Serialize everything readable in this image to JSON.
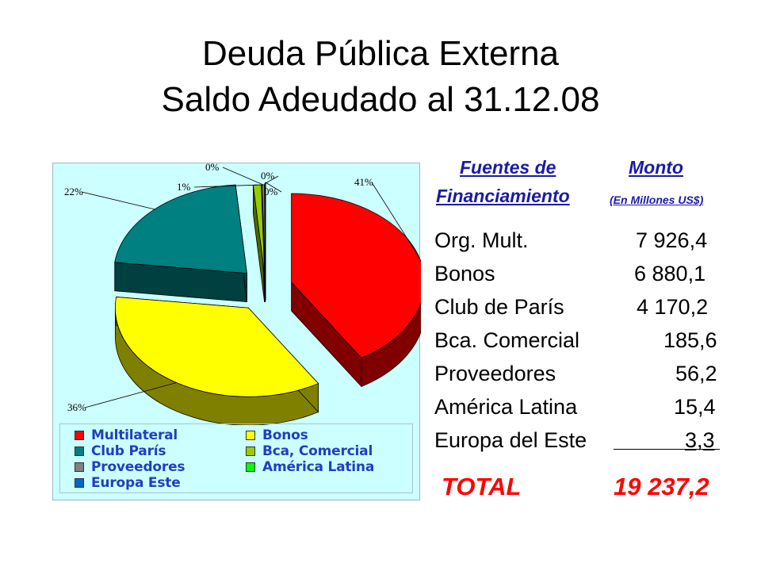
{
  "title": {
    "line1": "Deuda Pública Externa",
    "line2": "Saldo Adeudado al 31.12.08"
  },
  "chart_data": {
    "type": "pie",
    "style": "3d-exploded",
    "background_color": "#ccffff",
    "legend_placement": "bottom",
    "slices": [
      {
        "name": "Multilateral",
        "value": 7926.4,
        "label": "41%",
        "color": "#ff0000",
        "side_color": "#800000"
      },
      {
        "name": "Bonos",
        "value": 6880.1,
        "label": "36%",
        "color": "#ffff00",
        "side_color": "#808000"
      },
      {
        "name": "Club París",
        "value": 4170.2,
        "label": "22%",
        "color": "#008080",
        "side_color": "#004040"
      },
      {
        "name": "Bca, Comercial",
        "value": 185.6,
        "label": "1%",
        "color": "#99cc00",
        "side_color": "#4c6600"
      },
      {
        "name": "Proveedores",
        "value": 56.2,
        "label": "0%",
        "color": "#808080",
        "side_color": "#404040"
      },
      {
        "name": "América Latina",
        "value": 15.4,
        "label": "0%",
        "color": "#00ff00",
        "side_color": "#008000"
      },
      {
        "name": "Europa Este",
        "value": 3.3,
        "label": "0%",
        "color": "#0066cc",
        "side_color": "#003366"
      }
    ],
    "legend": [
      {
        "label": "Multilateral",
        "color": "#ff0000"
      },
      {
        "label": "Bonos",
        "color": "#ffff00"
      },
      {
        "label": "Club París",
        "color": "#008080"
      },
      {
        "label": "Bca, Comercial",
        "color": "#99cc00"
      },
      {
        "label": "Proveedores",
        "color": "#808080"
      },
      {
        "label": "América Latina",
        "color": "#00ff00"
      },
      {
        "label": "Europa Este",
        "color": "#0066cc"
      }
    ]
  },
  "table": {
    "header_source_line1": "Fuentes de",
    "header_source_line2": "Financiamiento",
    "header_amount_line1": "Monto",
    "header_amount_line2": "(En Millones US$)",
    "rows": [
      {
        "label": "Org. Mult.",
        "value": "7 926,4"
      },
      {
        "label": "Bonos",
        "value": "6 880,1"
      },
      {
        "label": "Club de París",
        "value": "4 170,2"
      },
      {
        "label": "Bca. Comercial",
        "value": "185,6"
      },
      {
        "label": "Proveedores",
        "value": "56,2"
      },
      {
        "label": "América Latina",
        "value": "15,4"
      },
      {
        "label": "Europa del Este",
        "value": "3,3"
      }
    ],
    "total_label": "TOTAL",
    "total_value": "19 237,2"
  }
}
